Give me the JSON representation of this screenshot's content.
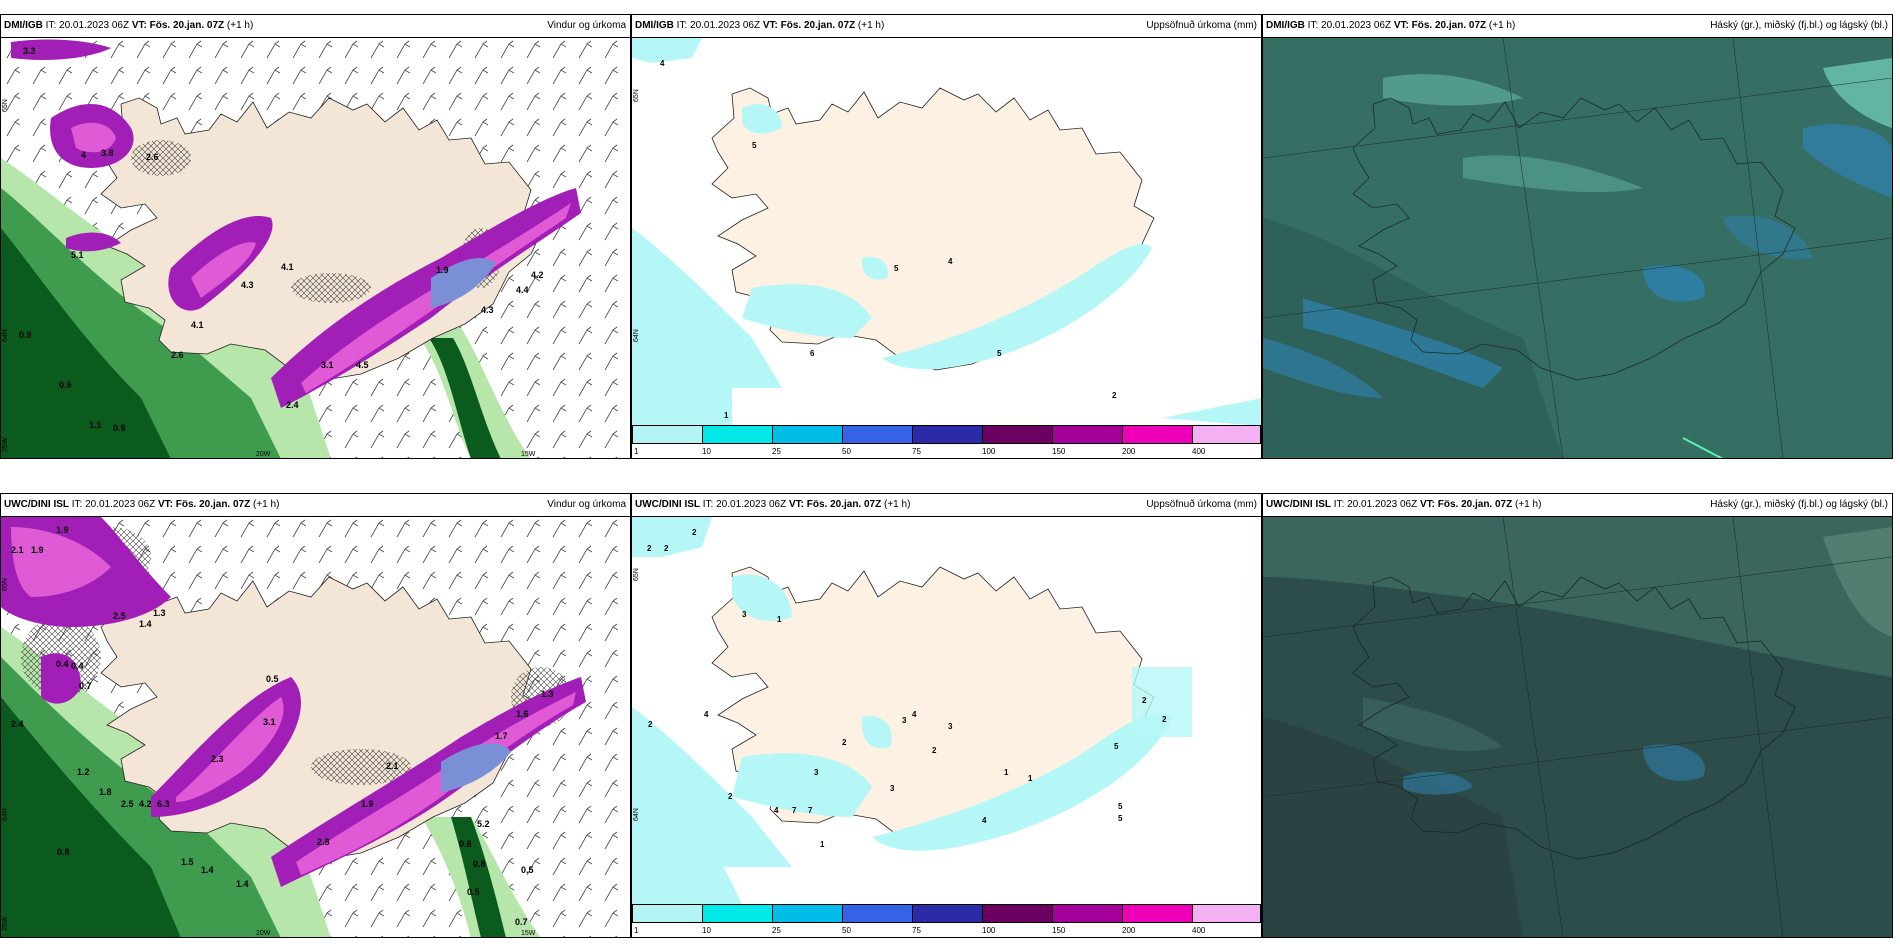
{
  "panels": {
    "p1": {
      "model": "DMI/IGB",
      "it_label": "IT:",
      "it_value": "20.01.2023 06Z",
      "vt_label": "VT:",
      "vt_value": "Fös. 20.jan. 07Z",
      "lead": "(+1 h)",
      "title": "Vindur og úrkoma",
      "map_labels": [
        "3.3",
        "2.6",
        "4",
        "3.8",
        "4.1",
        "4.3",
        "4.1",
        "2.6",
        "3.1",
        "4.5",
        "2.4",
        "4.2",
        "4.3",
        "4.4",
        "0.9",
        "0.9",
        "1.1",
        "0.9",
        "1.9",
        "5.1"
      ],
      "grid_labels": [
        "65N",
        "64N",
        "25W",
        "20W",
        "15W"
      ]
    },
    "p2": {
      "model": "DMI/IGB",
      "it_label": "IT:",
      "it_value": "20.01.2023 06Z",
      "vt_label": "VT:",
      "vt_value": "Fös. 20.jan. 07Z",
      "lead": "(+1 h)",
      "title": "Uppsöfnuð úrkoma (mm)",
      "map_labels": [
        "4",
        "5",
        "6",
        "5",
        "4",
        "2",
        "1",
        "5"
      ],
      "grid_labels": [
        "65N",
        "64N"
      ]
    },
    "p3": {
      "model": "DMI/IGB",
      "it_label": "IT:",
      "it_value": "20.01.2023 06Z",
      "vt_label": "VT:",
      "vt_value": "Fös. 20.jan. 07Z",
      "lead": "(+1 h)",
      "title": "Háský (gr.), miðský (fj.bl.) og lágský (bl.)"
    },
    "p4": {
      "model": "UWC/DINI ISL",
      "it_label": "IT:",
      "it_value": "20.01.2023 06Z",
      "vt_label": "VT:",
      "vt_value": "Fös. 20.jan. 07Z",
      "lead": "(+1 h)",
      "title": "Vindur og úrkoma",
      "map_labels": [
        "1.9",
        "2.1",
        "1.9",
        "2.5",
        "1.3",
        "1.4",
        "0.4",
        "0.4",
        "0.7",
        "2.4",
        "1.2",
        "1.8",
        "2.5",
        "4.2",
        "6.3",
        "0.8",
        "1.5",
        "1.4",
        "1.4",
        "2.3",
        "3.1",
        "2.8",
        "2.1",
        "1.9",
        "5.2",
        "0.8",
        "0.8",
        "0.5",
        "0.5",
        "0.7",
        "1.3",
        "1.6",
        "1.7",
        "0.5"
      ],
      "grid_labels": [
        "65N",
        "64N",
        "25W",
        "20W",
        "15W"
      ]
    },
    "p5": {
      "model": "UWC/DINI ISL",
      "it_label": "IT:",
      "it_value": "20.01.2023 06Z",
      "vt_label": "VT:",
      "vt_value": "Fös. 20.jan. 07Z",
      "lead": "(+1 h)",
      "title": "Uppsöfnuð úrkoma (mm)",
      "map_labels": [
        "2",
        "2",
        "2",
        "2",
        "3",
        "1",
        "4",
        "2",
        "3",
        "2",
        "4",
        "7",
        "7",
        "3",
        "2",
        "3",
        "5",
        "5",
        "5",
        "2",
        "4",
        "1",
        "2",
        "3",
        "4",
        "1",
        "1"
      ],
      "grid_labels": [
        "65N",
        "64N"
      ]
    },
    "p6": {
      "model": "UWC/DINI ISL",
      "it_label": "IT:",
      "it_value": "20.01.2023 06Z",
      "vt_label": "VT:",
      "vt_value": "Fös. 20.jan. 07Z",
      "lead": "(+1 h)",
      "title": "Háský (gr.), miðský (fj.bl.) og lágský (bl.)"
    }
  },
  "colorbar": {
    "ticks": [
      "1",
      "10",
      "25",
      "50",
      "75",
      "100",
      "150",
      "200",
      "400"
    ],
    "colors": [
      "#b3f5f5",
      "#00e8e8",
      "#00bde8",
      "#3563e8",
      "#2b2ba8",
      "#6b0060",
      "#a5009a",
      "#ee00b8",
      "#f3b0f3"
    ]
  },
  "colors": {
    "land": "#f3e6d6",
    "precip_light": "#b5f7f7",
    "wind_green_dark": "#0b5a1e",
    "wind_green_mid": "#3f9c4f",
    "wind_green_light": "#b6e6aa",
    "wind_purple": "#a11fb6",
    "wind_magenta": "#e05ad6",
    "wind_blue": "#7b8fd7",
    "cloud_base_top": "#356e63",
    "cloud_base_bottom": "#2d4d4b",
    "cloud_blue": "#2f7fa8",
    "cloud_light": "#6fc7b3"
  }
}
